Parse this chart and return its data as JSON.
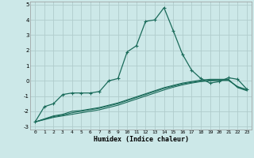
{
  "xlabel": "Humidex (Indice chaleur)",
  "xlim": [
    -0.5,
    23.5
  ],
  "ylim": [
    -3.2,
    5.2
  ],
  "yticks": [
    -3,
    -2,
    -1,
    0,
    1,
    2,
    3,
    4,
    5
  ],
  "xticks": [
    0,
    1,
    2,
    3,
    4,
    5,
    6,
    7,
    8,
    9,
    10,
    11,
    12,
    13,
    14,
    15,
    16,
    17,
    18,
    19,
    20,
    21,
    22,
    23
  ],
  "bg_color": "#cce8e8",
  "grid_color": "#b0cccc",
  "line_color": "#1a6b5a",
  "line1_x": [
    0,
    1,
    2,
    3,
    4,
    5,
    6,
    7,
    8,
    9,
    10,
    11,
    12,
    13,
    14,
    15,
    16,
    17,
    18,
    19,
    20,
    21,
    22,
    23
  ],
  "line1_y": [
    -2.7,
    -1.7,
    -1.5,
    -0.9,
    -0.8,
    -0.8,
    -0.8,
    -0.7,
    0.0,
    0.15,
    1.9,
    2.3,
    3.9,
    4.0,
    4.8,
    3.3,
    1.75,
    0.7,
    0.15,
    -0.15,
    -0.05,
    0.2,
    0.1,
    -0.55
  ],
  "line2_x": [
    0,
    2,
    3,
    4,
    5,
    6,
    7,
    8,
    9,
    10,
    11,
    12,
    13,
    14,
    15,
    16,
    17,
    18,
    19,
    20,
    21,
    22,
    23
  ],
  "line2_y": [
    -2.7,
    -2.3,
    -2.2,
    -2.0,
    -1.95,
    -1.85,
    -1.75,
    -1.6,
    -1.45,
    -1.25,
    -1.05,
    -0.85,
    -0.65,
    -0.45,
    -0.3,
    -0.15,
    -0.05,
    0.05,
    0.1,
    0.1,
    0.1,
    -0.45,
    -0.65
  ],
  "line3_x": [
    0,
    2,
    3,
    4,
    5,
    6,
    7,
    8,
    9,
    10,
    11,
    12,
    13,
    14,
    15,
    16,
    17,
    18,
    19,
    20,
    21,
    22,
    23
  ],
  "line3_y": [
    -2.7,
    -2.35,
    -2.25,
    -2.1,
    -2.0,
    -1.9,
    -1.8,
    -1.65,
    -1.5,
    -1.3,
    -1.1,
    -0.9,
    -0.7,
    -0.5,
    -0.35,
    -0.2,
    -0.1,
    -0.02,
    0.04,
    0.05,
    0.05,
    -0.4,
    -0.6
  ],
  "line4_x": [
    0,
    2,
    3,
    4,
    5,
    6,
    7,
    8,
    9,
    10,
    11,
    12,
    13,
    14,
    15,
    16,
    17,
    18,
    19,
    20,
    21,
    22,
    23
  ],
  "line4_y": [
    -2.7,
    -2.4,
    -2.3,
    -2.2,
    -2.1,
    -2.0,
    -1.9,
    -1.75,
    -1.6,
    -1.4,
    -1.2,
    -1.0,
    -0.8,
    -0.6,
    -0.42,
    -0.27,
    -0.15,
    -0.05,
    0.0,
    0.02,
    0.02,
    -0.38,
    -0.58
  ]
}
